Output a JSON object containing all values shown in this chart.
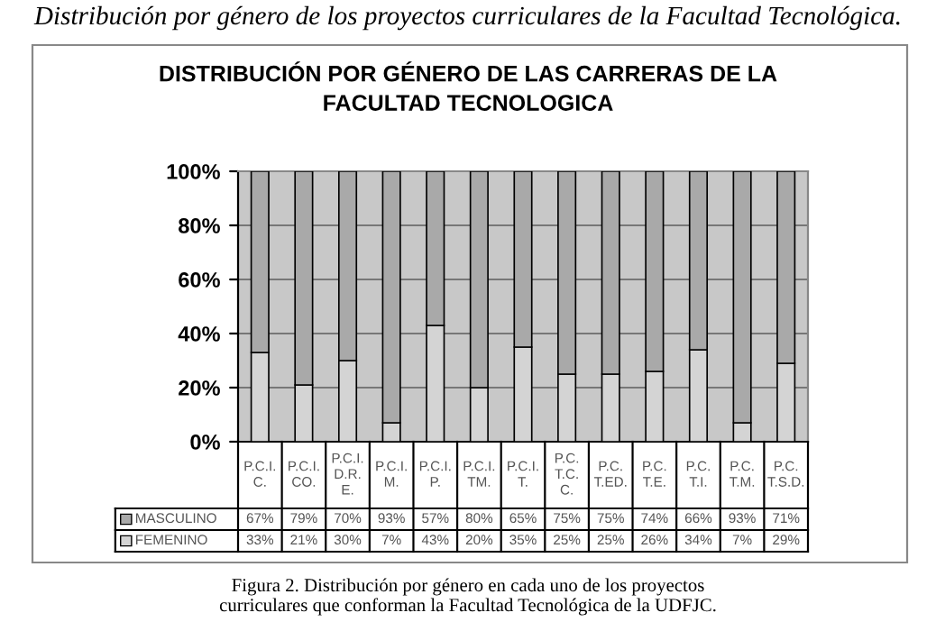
{
  "chart_data": {
    "type": "bar",
    "stacked": true,
    "subtitle": "Distribución por género de los proyectos curriculares de la Facultad Tecnológica.",
    "title": "DISTRIBUCIÓN POR GÉNERO DE LAS CARRERAS DE LA\nFACULTAD TECNOLOGICA",
    "categories": [
      "P.C.I.\nC.",
      "P.C.I.\nCO.",
      "P.C.I.\nD.R.\nE.",
      "P.C.I.\nM.",
      "P.C.I.\nP.",
      "P.C.I.\nTM.",
      "P.C.I.\nT.",
      "P.C.\nT.C.\nC.",
      "P.C.\nT.ED.",
      "P.C.\nT.E.",
      "P.C.\nT.I.",
      "P.C.\nT.M.",
      "P.C.\nT.S.D."
    ],
    "series": [
      {
        "name": "FEMENINO",
        "color": "#d4d4d4",
        "values": [
          33,
          21,
          30,
          7,
          43,
          20,
          35,
          25,
          25,
          26,
          34,
          7,
          29
        ],
        "value_labels": [
          "33%",
          "21%",
          "30%",
          "7%",
          "43%",
          "20%",
          "35%",
          "25%",
          "25%",
          "26%",
          "34%",
          "7%",
          "29%"
        ]
      },
      {
        "name": "MASCULINO",
        "color": "#a9a9a9",
        "values": [
          67,
          79,
          70,
          93,
          57,
          80,
          65,
          75,
          75,
          74,
          66,
          93,
          71
        ],
        "value_labels": [
          "67%",
          "79%",
          "70%",
          "93%",
          "57%",
          "80%",
          "65%",
          "75%",
          "75%",
          "74%",
          "66%",
          "93%",
          "71%"
        ]
      }
    ],
    "ylim": [
      0,
      100
    ],
    "yticks": [
      {
        "value": 0,
        "label": "0%"
      },
      {
        "value": 20,
        "label": "20%"
      },
      {
        "value": 40,
        "label": "40%"
      },
      {
        "value": 60,
        "label": "60%"
      },
      {
        "value": 80,
        "label": "80%"
      },
      {
        "value": 100,
        "label": "100%"
      }
    ],
    "grid": "y",
    "legend": "bottom",
    "annotations": [
      "Figura 2. Distribución por género en cada uno de los proyectos\ncurriculares que conforman la Facultad Tecnológica de la UDFJC."
    ]
  }
}
